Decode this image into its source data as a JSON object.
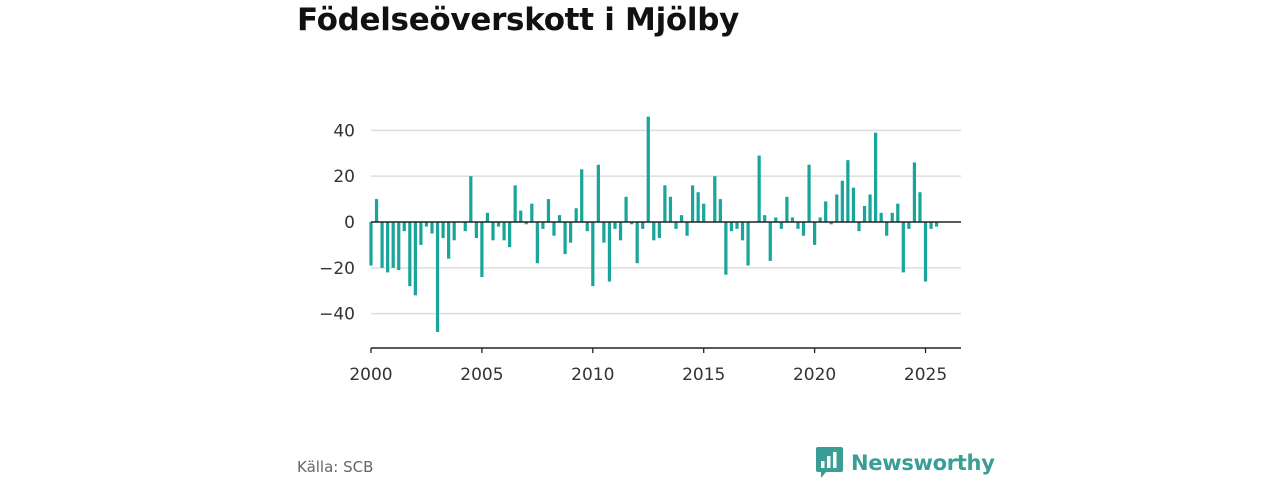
{
  "title": "Födelseöverskott i Mjölby",
  "source": "Källa: SCB",
  "brand": {
    "name": "Newsworthy",
    "color": "#3a9e96",
    "icon": "bar-chart-logo-icon"
  },
  "colors": {
    "bar": "#1aa59a",
    "grid": "#dddddd",
    "axis": "#222222"
  },
  "chart_data": {
    "type": "bar",
    "title": "Födelseöverskott i Mjölby",
    "xlabel": "",
    "ylabel": "",
    "x_start": 2000,
    "periods_per_year": 4,
    "xlim": [
      2000,
      2026.6
    ],
    "ylim": [
      -55,
      55
    ],
    "yticks": [
      40,
      20,
      0,
      -20,
      -40
    ],
    "ytick_labels": [
      "40",
      "20",
      "0",
      "−20",
      "−40"
    ],
    "xticks": [
      2000,
      2005,
      2010,
      2015,
      2020,
      2025
    ],
    "xtick_labels": [
      "2000",
      "2005",
      "2010",
      "2015",
      "2020",
      "2025"
    ],
    "grid": true,
    "legend": "none",
    "values": [
      -19,
      10,
      -20,
      -22,
      -20,
      -21,
      -4,
      -28,
      -32,
      -10,
      -2,
      -5,
      -48,
      -7,
      -16,
      -8,
      0,
      -4,
      20,
      -7,
      -24,
      4,
      -8,
      -2,
      -8,
      -11,
      16,
      5,
      -1,
      8,
      -18,
      -3,
      10,
      -6,
      3,
      -14,
      -9,
      6,
      23,
      -4,
      -28,
      25,
      -9,
      -26,
      -3,
      -8,
      11,
      -1,
      -18,
      -3,
      46,
      -8,
      -7,
      16,
      11,
      -3,
      3,
      -6,
      16,
      13,
      8,
      0,
      20,
      10,
      -23,
      -4,
      -3,
      -8,
      -19,
      0,
      29,
      3,
      -17,
      2,
      -3,
      11,
      2,
      -3,
      -6,
      25,
      -10,
      2,
      9,
      -1,
      12,
      18,
      27,
      15,
      -4,
      7,
      12,
      39,
      4,
      -6,
      4,
      8,
      -22,
      -3,
      26,
      13,
      -26,
      -3,
      -2
    ]
  }
}
